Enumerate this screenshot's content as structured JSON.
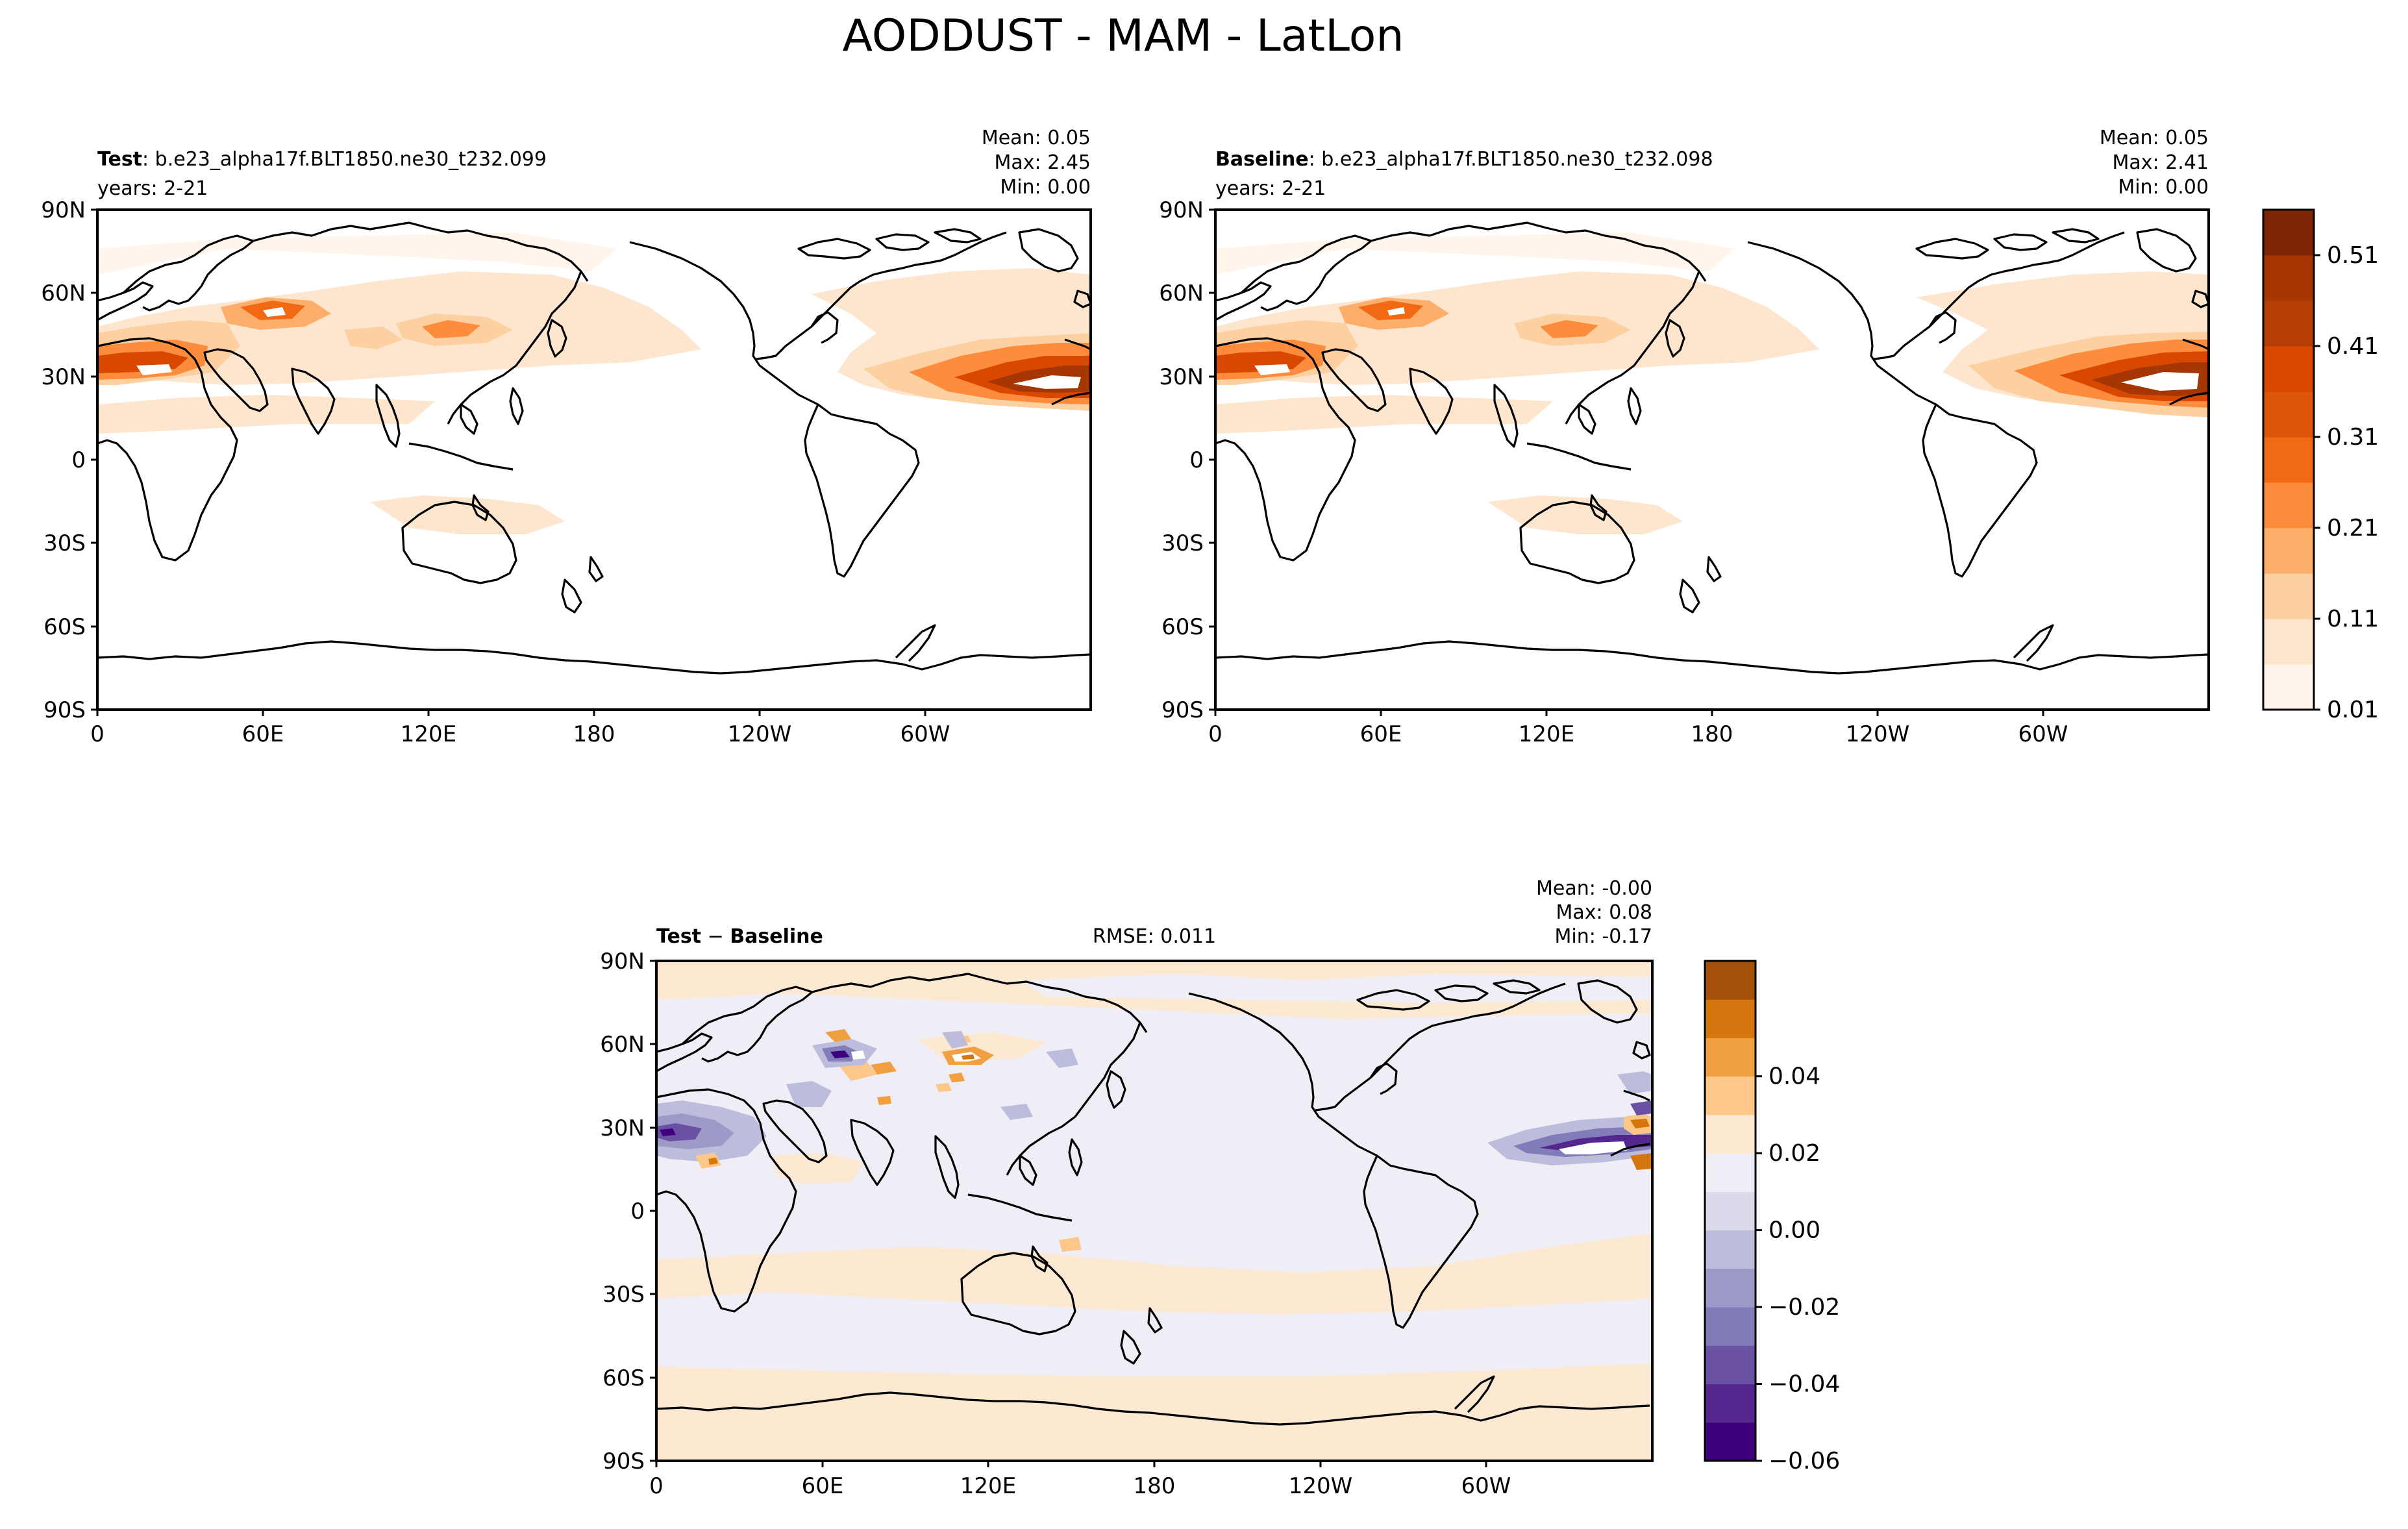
{
  "figure": {
    "title": "AODDUST - MAM - LatLon"
  },
  "panels": {
    "test": {
      "label_bold": "Test",
      "label_rest": ": b.e23_alpha17f.BLT1850.ne30_t232.099",
      "years": "years: 2-21",
      "stats": {
        "mean": "Mean:  0.05",
        "max": "Max:  2.45",
        "min": "Min:  0.00"
      }
    },
    "baseline": {
      "label_bold": "Baseline",
      "label_rest": ": b.e23_alpha17f.BLT1850.ne30_t232.098",
      "years": "years: 2-21",
      "stats": {
        "mean": "Mean:  0.05",
        "max": "Max:  2.41",
        "min": "Min:  0.00"
      }
    },
    "diff": {
      "label_bold_a": "Test",
      "label_op": " − ",
      "label_bold_b": "Baseline",
      "rmse": "RMSE: 0.011",
      "stats": {
        "mean": "Mean: -0.00",
        "max": "Max:  0.08",
        "min": "Min: -0.17"
      }
    }
  },
  "axes": {
    "lat_ticks": [
      "90N",
      "60N",
      "30N",
      "0",
      "30S",
      "60S",
      "90S"
    ],
    "lon_ticks": [
      "0",
      "60E",
      "120E",
      "180",
      "120W",
      "60W"
    ]
  },
  "colorbars": {
    "field": {
      "colors": [
        "#fff5eb",
        "#fee6ce",
        "#fdd0a2",
        "#fdae6b",
        "#fd8d3c",
        "#f16913",
        "#e0550c",
        "#d94801",
        "#b83d04",
        "#a63603",
        "#7f2704"
      ],
      "tick_labels": [
        "0.01",
        "0.11",
        "0.21",
        "0.31",
        "0.41",
        "0.51"
      ]
    },
    "diff": {
      "colors": [
        "#3f007d",
        "#54278f",
        "#6a51a3",
        "#807dba",
        "#9e9ac8",
        "#bcbddc",
        "#dadaeb",
        "#efedf5",
        "#fde8d2",
        "#fdc78a",
        "#f0a040",
        "#d6760f",
        "#a5510c"
      ],
      "tick_labels": [
        "−0.06",
        "−0.04",
        "−0.02",
        "0.00",
        "0.02",
        "0.04"
      ]
    }
  }
}
